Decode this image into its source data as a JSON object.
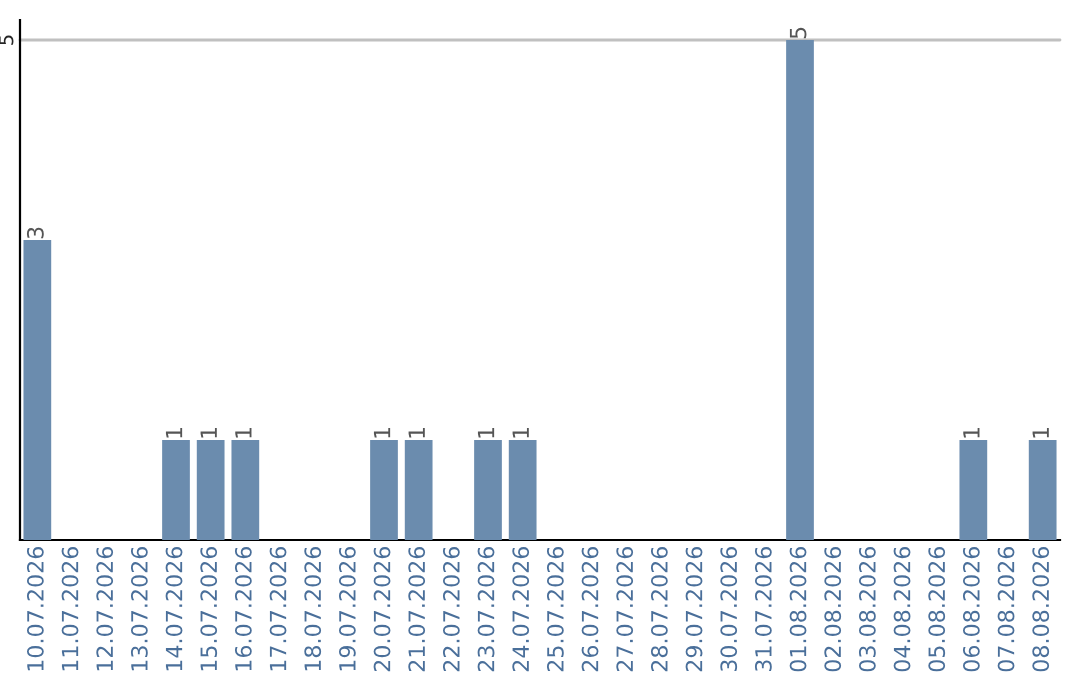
{
  "chart_data": {
    "type": "bar",
    "categories": [
      "10.07.2026",
      "11.07.2026",
      "12.07.2026",
      "13.07.2026",
      "14.07.2026",
      "15.07.2026",
      "16.07.2026",
      "17.07.2026",
      "18.07.2026",
      "19.07.2026",
      "20.07.2026",
      "21.07.2026",
      "22.07.2026",
      "23.07.2026",
      "24.07.2026",
      "25.07.2026",
      "26.07.2026",
      "27.07.2026",
      "28.07.2026",
      "29.07.2026",
      "30.07.2026",
      "31.07.2026",
      "01.08.2026",
      "02.08.2026",
      "03.08.2026",
      "04.08.2026",
      "05.08.2026",
      "06.08.2026",
      "07.08.2026",
      "08.08.2026"
    ],
    "values": [
      3,
      0,
      0,
      0,
      1,
      1,
      1,
      0,
      0,
      0,
      1,
      1,
      0,
      1,
      1,
      0,
      0,
      0,
      0,
      0,
      0,
      0,
      5,
      0,
      0,
      0,
      0,
      1,
      0,
      1
    ],
    "value_labels": [
      "3",
      null,
      null,
      null,
      "1",
      "1",
      "1",
      null,
      null,
      null,
      "1",
      "1",
      null,
      "1",
      "1",
      null,
      null,
      null,
      null,
      null,
      null,
      null,
      "5",
      null,
      null,
      null,
      null,
      "1",
      null,
      "1"
    ],
    "color": "#6b8cae",
    "ylim": [
      0,
      5.2
    ],
    "yticks": [
      5
    ],
    "grid": "y",
    "legend": false
  }
}
